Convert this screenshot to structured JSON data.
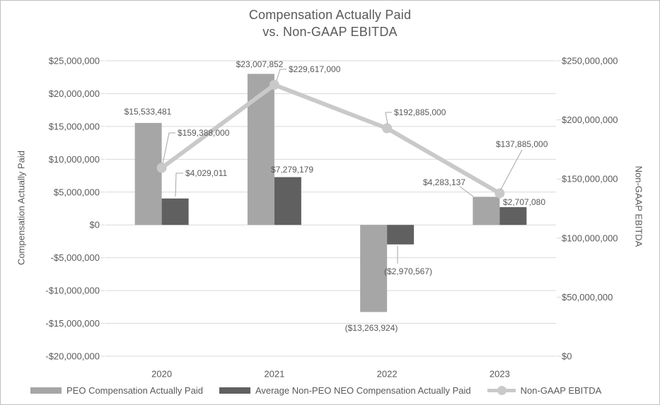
{
  "chart_data": {
    "type": "combo",
    "title": "Compensation Actually Paid vs. Non-GAAP EBITDA",
    "title_line1": "Compensation Actually Paid",
    "title_line2": "vs. Non-GAAP EBITDA",
    "categories": [
      "2020",
      "2021",
      "2022",
      "2023"
    ],
    "series": [
      {
        "name": "PEO Compensation Actually Paid",
        "type": "bar",
        "axis": "left",
        "color": "#a6a6a6",
        "values": [
          15533481,
          23007852,
          -13263924,
          4283137
        ],
        "labels": [
          "$15,533,481",
          "$23,007,852",
          "($13,263,924)",
          "$4,283,137"
        ]
      },
      {
        "name": "Average Non-PEO NEO Compensation Actually Paid",
        "type": "bar",
        "axis": "left",
        "color": "#606060",
        "values": [
          4029011,
          7279179,
          -2970567,
          2707080
        ],
        "labels": [
          "$4,029,011",
          "$7,279,179",
          "($2,970,567)",
          "$2,707,080"
        ]
      },
      {
        "name": "Non-GAAP EBITDA",
        "type": "line",
        "axis": "right",
        "color": "#c9c9c9",
        "values": [
          159388000,
          229617000,
          192885000,
          137885000
        ],
        "labels": [
          "$159,388,000",
          "$229,617,000",
          "$192,885,000",
          "$137,885,000"
        ]
      }
    ],
    "left_axis": {
      "title": "Compensation Actually Paid",
      "min": -20000000,
      "max": 25000000,
      "step": 5000000,
      "tick_labels": [
        "$25,000,000",
        "$20,000,000",
        "$15,000,000",
        "$10,000,000",
        "$5,000,000",
        "$0",
        "-$5,000,000",
        "-$10,000,000",
        "-$15,000,000",
        "-$20,000,000"
      ]
    },
    "right_axis": {
      "title": "Non-GAAP EBITDA",
      "min": 0,
      "max": 250000000,
      "step": 50000000,
      "tick_labels": [
        "$250,000,000",
        "$200,000,000",
        "$150,000,000",
        "$100,000,000",
        "$50,000,000",
        "$0"
      ]
    },
    "grid": true,
    "legend_position": "bottom",
    "colors": {
      "text": "#595959",
      "gridline": "#d9d9d9",
      "leader_line": "#a6a6a6",
      "bar_light": "#a6a6a6",
      "bar_dark": "#606060",
      "line": "#c9c9c9"
    }
  }
}
